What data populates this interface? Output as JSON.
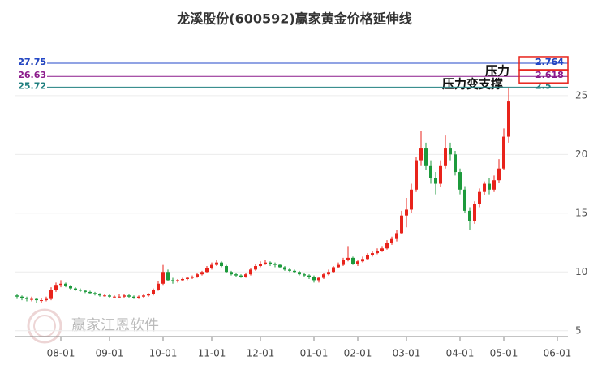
{
  "chart_data": {
    "type": "candlestick",
    "title": "龙溪股份(600592)赢家黄金价格延伸线",
    "watermark": "赢家江恩软件",
    "categories": [
      null,
      null,
      null,
      null,
      null,
      null,
      null,
      null,
      null,
      "08-01",
      null,
      null,
      null,
      null,
      null,
      null,
      null,
      null,
      null,
      "09-01",
      null,
      null,
      null,
      null,
      null,
      null,
      null,
      null,
      null,
      null,
      "10-01",
      null,
      null,
      null,
      null,
      null,
      null,
      null,
      null,
      null,
      "11-01",
      null,
      null,
      null,
      null,
      null,
      null,
      null,
      null,
      null,
      "12-01",
      null,
      null,
      null,
      null,
      null,
      null,
      null,
      null,
      null,
      null,
      "01-01",
      null,
      null,
      null,
      null,
      null,
      null,
      null,
      null,
      "02-01",
      null,
      null,
      null,
      null,
      null,
      null,
      null,
      null,
      null,
      "03-01",
      null,
      null,
      null,
      null,
      null,
      null,
      null,
      null,
      null,
      null,
      "04-01",
      null,
      null,
      null,
      null,
      null,
      null,
      null,
      null,
      "05-01",
      null,
      null,
      null,
      null,
      null,
      null,
      null,
      null,
      null,
      null,
      "06-01",
      null
    ],
    "open": [
      8.0,
      7.9,
      7.8,
      7.7,
      7.7,
      7.6,
      7.6,
      7.7,
      8.5,
      8.9,
      9.0,
      8.8,
      8.6,
      8.5,
      8.4,
      8.3,
      8.2,
      8.1,
      8.0,
      8.0,
      7.9,
      7.9,
      7.9,
      8.0,
      7.9,
      7.8,
      7.9,
      8.0,
      8.1,
      8.5,
      9.0,
      10.0,
      9.3,
      9.2,
      9.3,
      9.4,
      9.5,
      9.6,
      9.8,
      10.0,
      10.3,
      10.6,
      10.8,
      10.5,
      10.0,
      9.8,
      9.7,
      9.6,
      9.8,
      10.2,
      10.5,
      10.7,
      10.8,
      10.7,
      10.6,
      10.4,
      10.2,
      10.1,
      10.0,
      9.8,
      9.7,
      9.6,
      9.3,
      9.5,
      9.8,
      10.0,
      10.4,
      10.6,
      11.0,
      11.2,
      10.7,
      10.9,
      11.1,
      11.4,
      11.6,
      11.8,
      12.0,
      12.5,
      12.8,
      13.3,
      14.8,
      15.3,
      17.0,
      19.5,
      20.5,
      19.0,
      18.0,
      17.5,
      19.0,
      20.5,
      20.0,
      18.5,
      17.0,
      15.2,
      14.3,
      15.8,
      16.8,
      17.5,
      17.0,
      17.8,
      18.8,
      21.5,
      null,
      null,
      null,
      null,
      null,
      null,
      null,
      null,
      null,
      null,
      null
    ],
    "high": [
      8.1,
      8.0,
      7.9,
      7.9,
      7.8,
      7.8,
      7.9,
      8.7,
      9.1,
      9.3,
      9.1,
      8.9,
      8.7,
      8.6,
      8.5,
      8.4,
      8.3,
      8.2,
      8.1,
      8.1,
      8.0,
      8.1,
      8.1,
      8.1,
      8.0,
      8.0,
      8.1,
      8.2,
      8.6,
      9.2,
      10.6,
      10.2,
      9.5,
      9.4,
      9.5,
      9.6,
      9.7,
      9.9,
      10.1,
      10.5,
      10.8,
      11.0,
      10.9,
      10.6,
      10.1,
      9.9,
      9.8,
      9.9,
      10.3,
      10.7,
      10.9,
      11.0,
      10.9,
      10.8,
      10.7,
      10.5,
      10.3,
      10.2,
      10.1,
      9.9,
      9.8,
      9.7,
      9.6,
      9.9,
      10.2,
      10.5,
      10.8,
      11.2,
      12.2,
      11.3,
      11.0,
      11.3,
      11.6,
      11.8,
      12.0,
      12.2,
      12.7,
      13.0,
      13.6,
      15.2,
      16.3,
      17.5,
      19.8,
      22.0,
      21.0,
      19.5,
      18.5,
      19.5,
      21.6,
      21.0,
      20.3,
      18.8,
      17.3,
      15.5,
      16.0,
      17.1,
      17.7,
      18.0,
      18.2,
      19.6,
      22.2,
      25.7,
      null,
      null,
      null,
      null,
      null,
      null,
      null,
      null,
      null,
      null,
      null
    ],
    "low": [
      7.7,
      7.6,
      7.5,
      7.5,
      7.4,
      7.4,
      7.5,
      7.6,
      8.3,
      8.7,
      8.7,
      8.5,
      8.4,
      8.3,
      8.2,
      8.1,
      8.0,
      7.9,
      7.9,
      7.8,
      7.8,
      7.8,
      7.8,
      7.8,
      7.7,
      7.7,
      7.8,
      7.9,
      8.0,
      8.4,
      8.9,
      9.2,
      9.0,
      9.1,
      9.2,
      9.3,
      9.4,
      9.5,
      9.7,
      9.9,
      10.2,
      10.5,
      10.4,
      9.9,
      9.7,
      9.6,
      9.5,
      9.5,
      9.7,
      10.1,
      10.4,
      10.6,
      10.5,
      10.4,
      10.3,
      10.1,
      10.0,
      9.9,
      9.7,
      9.6,
      9.4,
      9.1,
      9.1,
      9.4,
      9.7,
      9.9,
      10.3,
      10.5,
      10.9,
      10.6,
      10.5,
      10.8,
      11.0,
      11.3,
      11.5,
      11.7,
      11.9,
      12.3,
      12.6,
      13.2,
      13.8,
      15.0,
      16.8,
      19.0,
      18.7,
      17.5,
      16.6,
      17.2,
      18.8,
      19.5,
      18.2,
      16.6,
      15.0,
      13.6,
      14.1,
      15.5,
      16.5,
      16.6,
      16.8,
      17.6,
      18.7,
      21.0,
      null,
      null,
      null,
      null,
      null,
      null,
      null,
      null,
      null,
      null,
      null
    ],
    "close": [
      7.9,
      7.8,
      7.7,
      7.7,
      7.6,
      7.6,
      7.7,
      8.5,
      8.9,
      9.0,
      8.8,
      8.6,
      8.5,
      8.4,
      8.3,
      8.2,
      8.1,
      8.0,
      8.0,
      7.9,
      7.9,
      7.9,
      8.0,
      7.9,
      7.8,
      7.9,
      8.0,
      8.1,
      8.5,
      9.0,
      10.0,
      9.3,
      9.2,
      9.3,
      9.4,
      9.5,
      9.6,
      9.8,
      10.0,
      10.3,
      10.6,
      10.8,
      10.5,
      10.0,
      9.8,
      9.7,
      9.6,
      9.8,
      10.2,
      10.5,
      10.7,
      10.8,
      10.7,
      10.6,
      10.4,
      10.2,
      10.1,
      10.0,
      9.8,
      9.7,
      9.6,
      9.3,
      9.5,
      9.8,
      10.0,
      10.4,
      10.6,
      11.0,
      11.2,
      10.7,
      10.9,
      11.1,
      11.4,
      11.6,
      11.8,
      12.0,
      12.5,
      12.8,
      13.3,
      14.8,
      15.3,
      17.0,
      19.5,
      20.5,
      19.0,
      18.0,
      17.5,
      19.0,
      20.5,
      20.0,
      18.5,
      17.0,
      15.2,
      14.3,
      15.8,
      16.8,
      17.5,
      17.0,
      17.8,
      18.8,
      21.5,
      24.5,
      null,
      null,
      null,
      null,
      null,
      null,
      null,
      null,
      null,
      null,
      null
    ],
    "up_color": "#e8231b",
    "down_color": "#1d9a3c",
    "ylim": [
      4.5,
      28.3
    ],
    "yticks": [
      5,
      10,
      15,
      20,
      25
    ],
    "grid": true,
    "levels": [
      {
        "price": 27.75,
        "ratio": 2.764,
        "color": "#222222"
      },
      {
        "price": 27.75,
        "ratio": 2.764,
        "color": "#2347c8"
      },
      {
        "price": 26.63,
        "ratio": 2.618,
        "color": "#8b1a8b"
      },
      {
        "price": 25.72,
        "ratio": 2.5,
        "color": "#1f7f7f"
      }
    ],
    "annotations": [
      "压力",
      "压力变支撑"
    ]
  }
}
